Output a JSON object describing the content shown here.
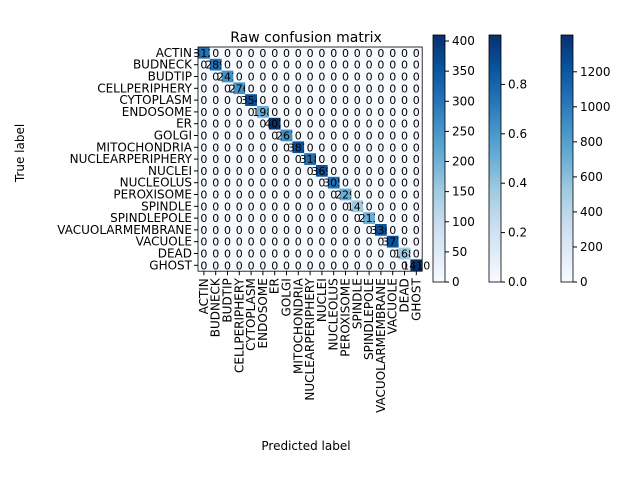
{
  "chart_data": {
    "type": "heatmap",
    "title": "Raw confusion matrix",
    "xlabel": "Predicted label",
    "ylabel": "True label",
    "labels": [
      "ACTIN",
      "BUDNECK",
      "BUDTIP",
      "CELLPERIPHERY",
      "CYTOPLASM",
      "ENDOSOME",
      "ER",
      "GOLGI",
      "MITOCHONDRIA",
      "NUCLEARPERIPHERY",
      "NUCLEI",
      "NUCLEOLUS",
      "PEROXISOME",
      "SPINDLE",
      "SPINDLEPOLE",
      "VACUOLARMEMBRANE",
      "VACUOLE",
      "DEAD",
      "GHOST"
    ],
    "diagonal_values": [
      312,
      289,
      241,
      276,
      354,
      198,
      402,
      267,
      381,
      318,
      369,
      305,
      229,
      147,
      213,
      336,
      377,
      168,
      1410
    ],
    "colorbars": [
      {
        "ticks": [
          0,
          50,
          100,
          150,
          200,
          250,
          300,
          350,
          400
        ],
        "range": [
          0,
          410
        ]
      },
      {
        "ticks": [
          0.0,
          0.2,
          0.4,
          0.6,
          0.8
        ],
        "range": [
          0,
          1
        ]
      },
      {
        "ticks": [
          0,
          200,
          400,
          600,
          800,
          1000,
          1200
        ],
        "range": [
          0,
          1410
        ]
      }
    ],
    "colormap": [
      "#f7fbff",
      "#deebf7",
      "#c6dbef",
      "#9ecae1",
      "#6baed6",
      "#4292c6",
      "#2171b5",
      "#08519c",
      "#08306b"
    ]
  }
}
